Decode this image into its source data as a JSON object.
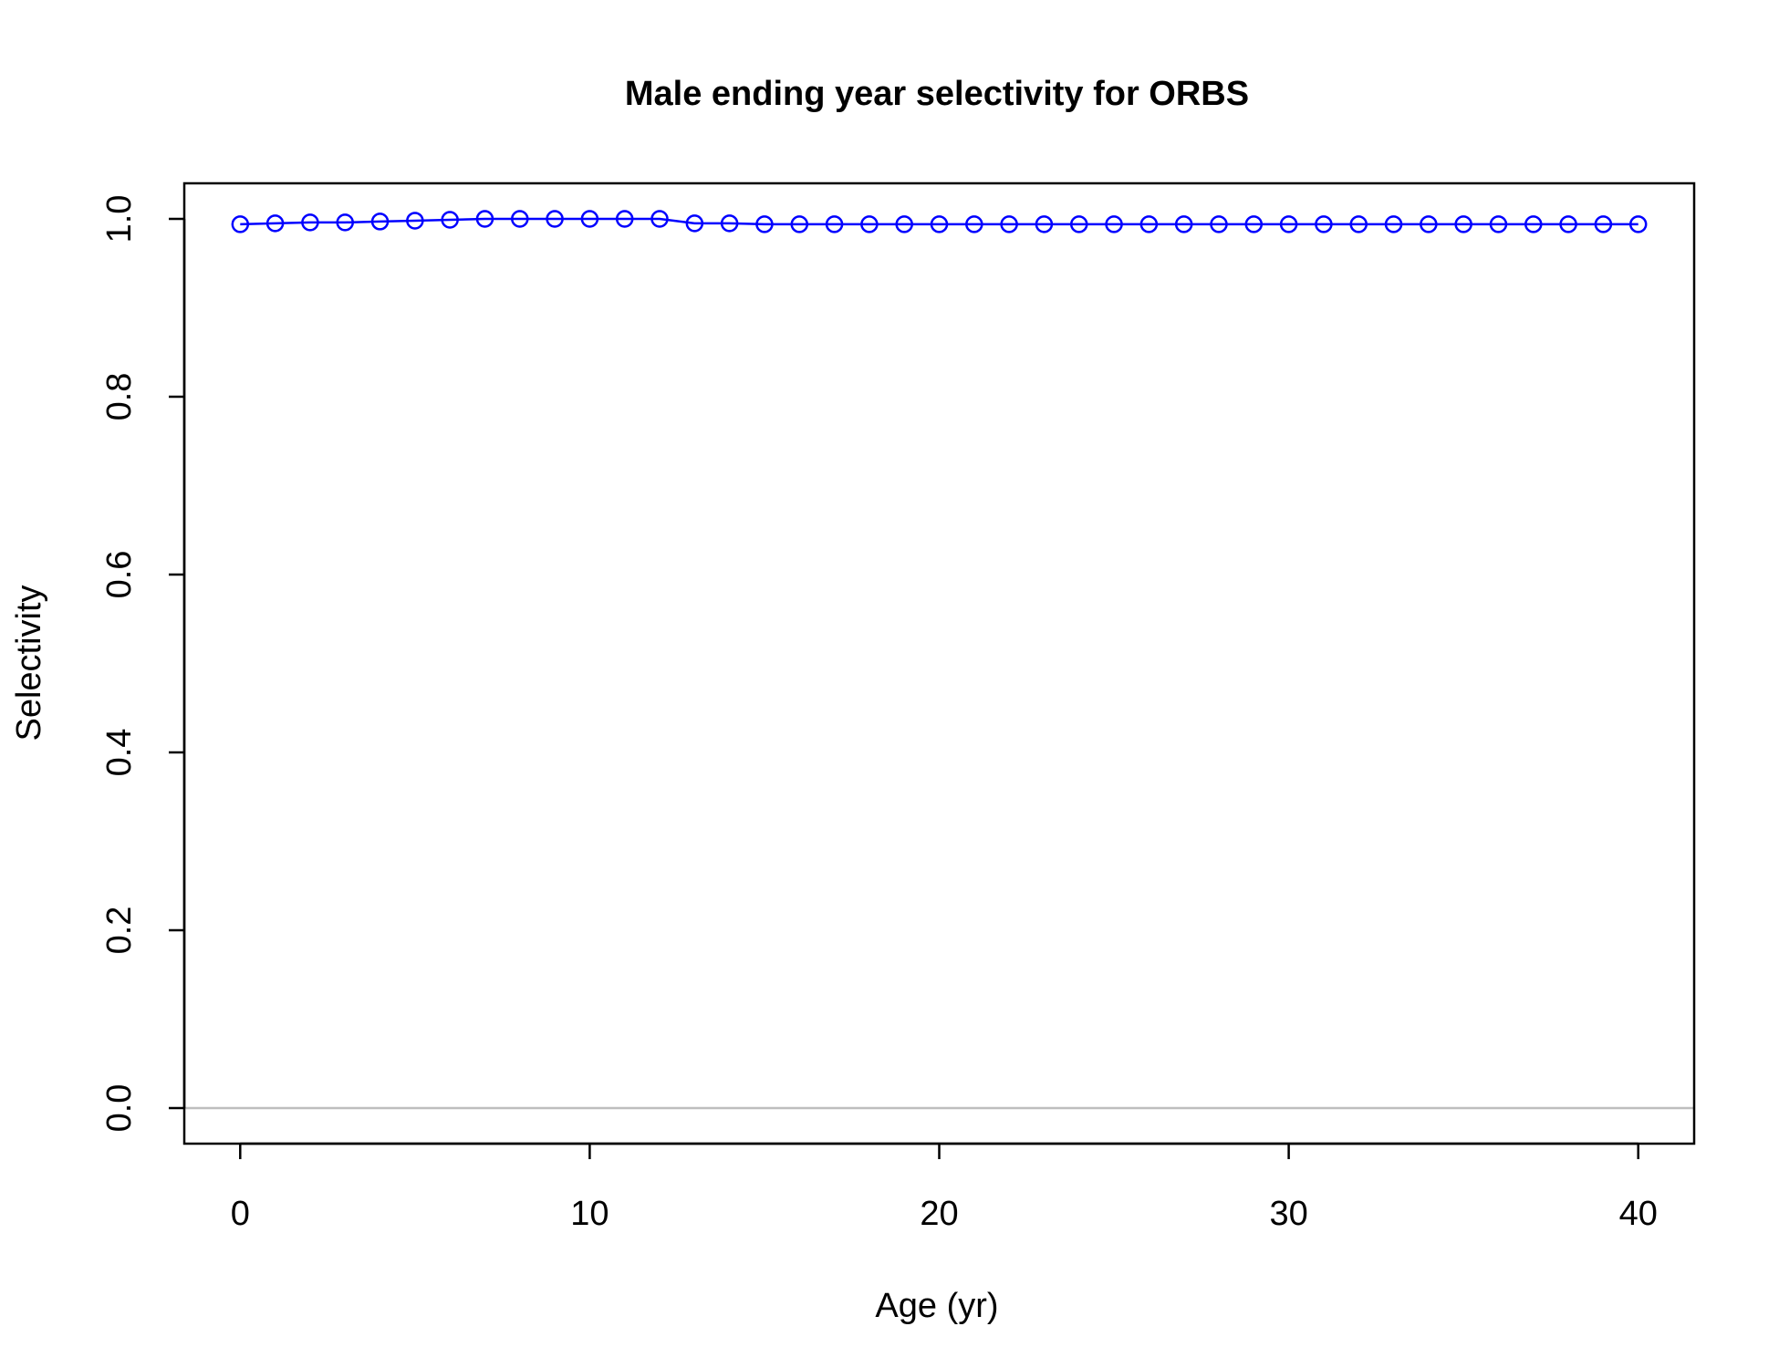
{
  "chart_data": {
    "type": "line",
    "title": "Male ending year selectivity for ORBS",
    "xlabel": "Age (yr)",
    "ylabel": "Selectivity",
    "xlim": [
      -1.6,
      41.6
    ],
    "ylim": [
      -0.04,
      1.04
    ],
    "xticks": [
      0,
      10,
      20,
      30,
      40
    ],
    "xtick_labels": [
      "0",
      "10",
      "20",
      "30",
      "40"
    ],
    "yticks": [
      0.0,
      0.2,
      0.4,
      0.6,
      0.8,
      1.0
    ],
    "ytick_labels": [
      "0.0",
      "0.2",
      "0.4",
      "0.6",
      "0.8",
      "1.0"
    ],
    "reference_line_y": 0,
    "series": [
      {
        "name": "Male ending year selectivity",
        "color": "#0000ff",
        "marker": "open-circle",
        "x": [
          0,
          1,
          2,
          3,
          4,
          5,
          6,
          7,
          8,
          9,
          10,
          11,
          12,
          13,
          14,
          15,
          16,
          17,
          18,
          19,
          20,
          21,
          22,
          23,
          24,
          25,
          26,
          27,
          28,
          29,
          30,
          31,
          32,
          33,
          34,
          35,
          36,
          37,
          38,
          39,
          40
        ],
        "y": [
          0.994,
          0.995,
          0.996,
          0.996,
          0.997,
          0.998,
          0.999,
          1.0,
          1.0,
          1.0,
          1.0,
          1.0,
          1.0,
          0.995,
          0.995,
          0.994,
          0.994,
          0.994,
          0.994,
          0.994,
          0.994,
          0.994,
          0.994,
          0.994,
          0.994,
          0.994,
          0.994,
          0.994,
          0.994,
          0.994,
          0.994,
          0.994,
          0.994,
          0.994,
          0.994,
          0.994,
          0.994,
          0.994,
          0.994,
          0.994,
          0.994
        ]
      }
    ]
  }
}
